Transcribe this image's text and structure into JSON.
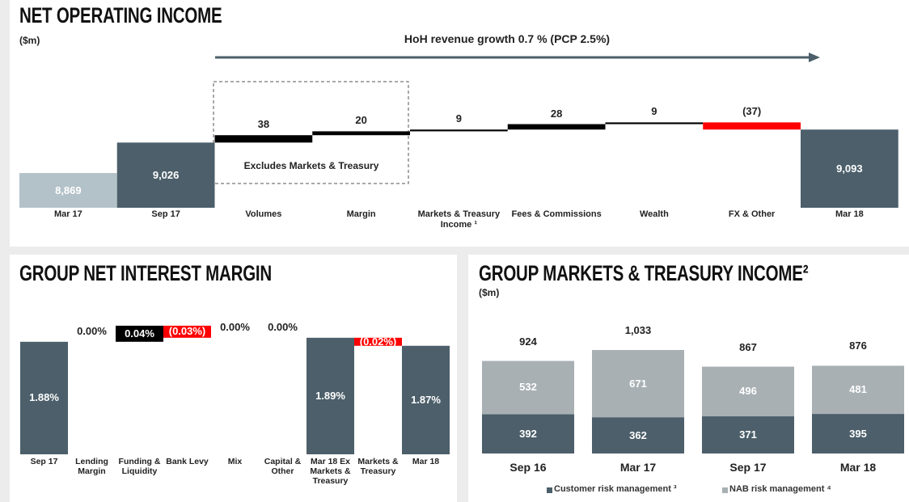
{
  "chart_data": [
    {
      "type": "waterfall",
      "title": "NET OPERATING INCOME",
      "subtitle": "($m)",
      "annotations": [
        "HoH revenue growth 0.7 % (PCP 2.5%)",
        "Excludes Markets & Treasury"
      ],
      "categories": [
        "Mar 17",
        "Sep 17",
        "Volumes",
        "Margin",
        "Markets & Treasury Income ¹",
        "Fees & Commissions",
        "Wealth",
        "FX & Other",
        "Mar 18"
      ],
      "values": [
        8869,
        9026,
        38,
        20,
        9,
        28,
        9,
        -37,
        9093
      ],
      "value_labels": [
        "8,869",
        "9,026",
        "38",
        "20",
        "9",
        "28",
        "9",
        "(37)",
        "9,093"
      ],
      "kinds": [
        "total",
        "total",
        "delta",
        "delta",
        "delta",
        "delta",
        "delta",
        "delta",
        "total"
      ],
      "colors": [
        "#b3c2c8",
        "#4c5f6a",
        "#000000",
        "#000000",
        "#000000",
        "#000000",
        "#000000",
        "#ff0000",
        "#4c5f6a"
      ],
      "ylim": [
        8690,
        9150
      ],
      "delta_labels": "above"
    },
    {
      "type": "waterfall",
      "title": "GROUP NET INTEREST MARGIN",
      "categories": [
        "Sep 17",
        "Lending Margin",
        "Funding & Liquidity",
        "Bank Levy",
        "Mix",
        "Capital & Other",
        "Mar 18 Ex Markets & Treasury",
        "Markets & Treasury",
        "Mar 18"
      ],
      "values": [
        1.88,
        0.0,
        0.04,
        -0.03,
        0.0,
        0.0,
        1.89,
        -0.02,
        1.87
      ],
      "value_labels": [
        "1.88%",
        "0.00%",
        "0.04%",
        "(0.03%)",
        "0.00%",
        "0.00%",
        "1.89%",
        "(0.02%)",
        "1.87%"
      ],
      "kinds": [
        "total",
        "delta",
        "delta",
        "delta",
        "delta",
        "delta",
        "total",
        "delta",
        "total"
      ],
      "colors": [
        "#4c5f6a",
        "#000000",
        "#000000",
        "#ff0000",
        "#000000",
        "#000000",
        "#4c5f6a",
        "#ff0000",
        "#4c5f6a"
      ],
      "ylim": [
        1.6,
        1.95
      ],
      "delta_labels": "inside"
    },
    {
      "type": "stacked_bar",
      "title": "GROUP MARKETS & TREASURY INCOME²",
      "subtitle": "($m)",
      "categories": [
        "Sep 16",
        "Mar 17",
        "Sep 17",
        "Mar 18"
      ],
      "series": [
        {
          "name": "Customer risk management ³",
          "color": "#4c5f6a",
          "values": [
            392,
            362,
            371,
            395
          ]
        },
        {
          "name": "NAB risk management ⁴",
          "color": "#a8b0b4",
          "values": [
            532,
            671,
            496,
            481
          ]
        }
      ],
      "totals": [
        924,
        1033,
        867,
        876
      ],
      "total_labels": [
        "924",
        "1,033",
        "867",
        "876"
      ],
      "ylim": [
        0,
        1100
      ],
      "legend": "bottom"
    }
  ]
}
